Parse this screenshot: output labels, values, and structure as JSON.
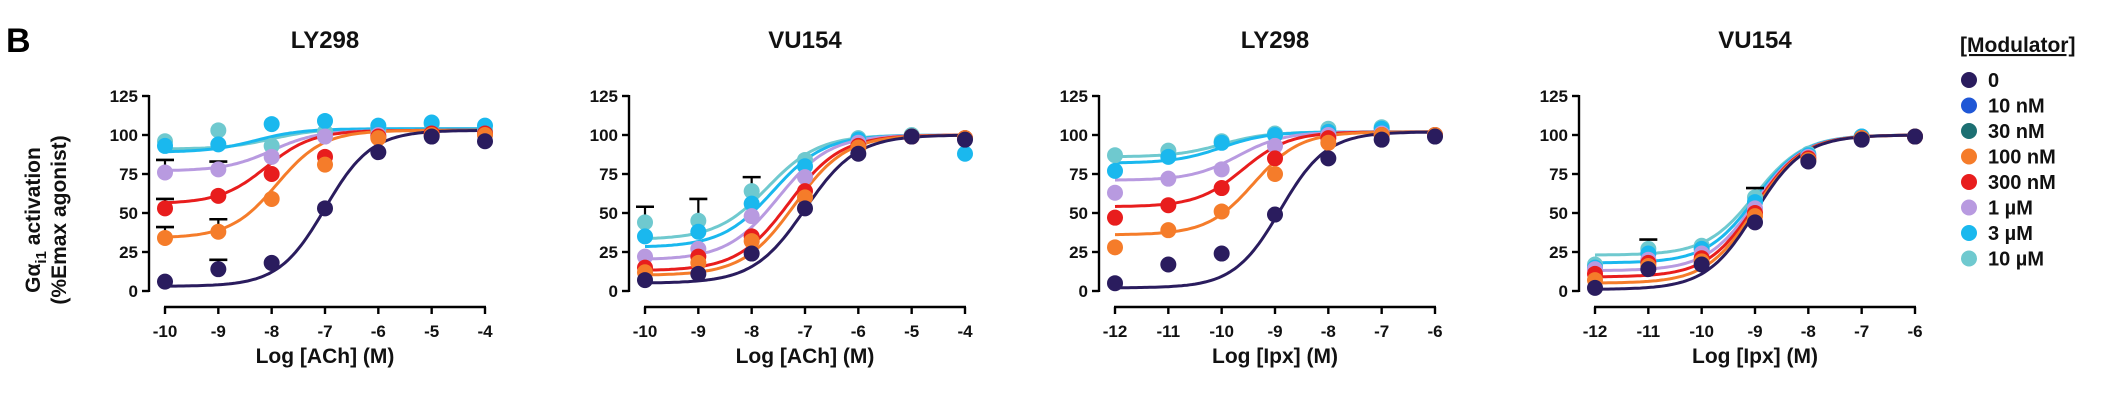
{
  "panel_letter": "B",
  "ylabel_line1": "Gα",
  "ylabel_sub": "i1",
  "ylabel_line1_rest": " activation",
  "ylabel_line2": "(%Emax agonist)",
  "legend": {
    "title": "[Modulator]",
    "entries": [
      {
        "name": "0",
        "color": "#2a1c5e"
      },
      {
        "name": "10 nM",
        "color": "#1f57d6"
      },
      {
        "name": "30 nM",
        "color": "#1c6f72"
      },
      {
        "name": "100 nM",
        "color": "#f57c2a"
      },
      {
        "name": "300 nM",
        "color": "#e81d1d"
      },
      {
        "name": "1 µM",
        "color": "#b89ae0"
      },
      {
        "name": "3 µM",
        "color": "#1ab8ee"
      },
      {
        "name": "10 µM",
        "color": "#6fc9cf"
      }
    ]
  },
  "chart_data": [
    {
      "type": "scatter",
      "title": "LY298",
      "xlabel": "Log [ACh] (M)",
      "xlim": [
        -10,
        -4
      ],
      "xticks": [
        -10,
        -9,
        -8,
        -7,
        -6,
        -5,
        -4
      ],
      "ylim": [
        0,
        125
      ],
      "yticks": [
        0,
        25,
        50,
        75,
        100,
        125
      ],
      "series": [
        {
          "name": "0",
          "x": [
            -10,
            -9,
            -8,
            -7,
            -6,
            -5,
            -4
          ],
          "y": [
            6,
            14,
            18,
            53,
            89,
            99,
            96
          ],
          "err": [
            0,
            6,
            0,
            0,
            0,
            0,
            0
          ],
          "fit": {
            "bottom": 3,
            "top": 103,
            "ec50": -7.0,
            "hill": 1.0
          }
        },
        {
          "name": "100 nM",
          "x": [
            -10,
            -9,
            -8,
            -7,
            -6,
            -5,
            -4
          ],
          "y": [
            34,
            38,
            59,
            81,
            98,
            100,
            100
          ],
          "err": [
            7,
            8,
            0,
            0,
            0,
            0,
            0
          ],
          "fit": {
            "bottom": 34,
            "top": 103,
            "ec50": -7.9,
            "hill": 1.0
          }
        },
        {
          "name": "300 nM",
          "x": [
            -10,
            -9,
            -8,
            -7,
            -6,
            -5,
            -4
          ],
          "y": [
            53,
            61,
            75,
            86,
            99,
            101,
            101
          ],
          "err": [
            6,
            0,
            0,
            0,
            0,
            0,
            0
          ],
          "fit": {
            "bottom": 56,
            "top": 103,
            "ec50": -8.1,
            "hill": 1.0
          }
        },
        {
          "name": "1 µM",
          "x": [
            -10,
            -9,
            -8,
            -7,
            -6,
            -5,
            -4
          ],
          "y": [
            76,
            78,
            86,
            99,
            100,
            100,
            100
          ],
          "err": [
            8,
            5,
            0,
            0,
            0,
            0,
            0
          ],
          "fit": {
            "bottom": 77,
            "top": 103,
            "ec50": -8.0,
            "hill": 1.0
          }
        },
        {
          "name": "3 µM",
          "x": [
            -10,
            -9,
            -8,
            -7,
            -6,
            -5,
            -4
          ],
          "y": [
            93,
            94,
            107,
            109,
            106,
            108,
            106
          ],
          "err": [
            0,
            0,
            0,
            0,
            0,
            0,
            0
          ],
          "fit": {
            "bottom": 89,
            "top": 104,
            "ec50": -8.3,
            "hill": 1.0
          }
        },
        {
          "name": "10 µM",
          "x": [
            -10,
            -9,
            -8,
            -7,
            -6,
            -5,
            -4
          ],
          "y": [
            96,
            103,
            93,
            102,
            104,
            107,
            103
          ],
          "err": [
            0,
            0,
            0,
            0,
            0,
            0,
            0
          ],
          "fit": {
            "bottom": 91,
            "top": 104,
            "ec50": -8.0,
            "hill": 1.0
          }
        }
      ]
    },
    {
      "type": "scatter",
      "title": "VU154",
      "xlabel": "Log [ACh] (M)",
      "xlim": [
        -10,
        -4
      ],
      "xticks": [
        -10,
        -9,
        -8,
        -7,
        -6,
        -5,
        -4
      ],
      "ylim": [
        0,
        125
      ],
      "yticks": [
        0,
        25,
        50,
        75,
        100,
        125
      ],
      "series": [
        {
          "name": "0",
          "x": [
            -10,
            -9,
            -8,
            -7,
            -6,
            -5,
            -4
          ],
          "y": [
            7,
            11,
            24,
            53,
            88,
            99,
            97
          ],
          "err": [
            0,
            0,
            0,
            0,
            0,
            0,
            0
          ],
          "fit": {
            "bottom": 5,
            "top": 100,
            "ec50": -7.0,
            "hill": 0.9
          }
        },
        {
          "name": "100 nM",
          "x": [
            -10,
            -9,
            -8,
            -7,
            -6,
            -5,
            -4
          ],
          "y": [
            12,
            18,
            32,
            60,
            92,
            99,
            98
          ],
          "err": [
            0,
            0,
            0,
            0,
            0,
            0,
            0
          ],
          "fit": {
            "bottom": 10,
            "top": 100,
            "ec50": -7.2,
            "hill": 0.9
          }
        },
        {
          "name": "300 nM",
          "x": [
            -10,
            -9,
            -8,
            -7,
            -6,
            -5,
            -4
          ],
          "y": [
            15,
            22,
            35,
            64,
            93,
            99,
            98
          ],
          "err": [
            0,
            0,
            0,
            0,
            0,
            0,
            0
          ],
          "fit": {
            "bottom": 13,
            "top": 100,
            "ec50": -7.3,
            "hill": 0.9
          }
        },
        {
          "name": "1 µM",
          "x": [
            -10,
            -9,
            -8,
            -7,
            -6,
            -5,
            -4
          ],
          "y": [
            22,
            27,
            48,
            73,
            95,
            99,
            98
          ],
          "err": [
            0,
            0,
            0,
            0,
            0,
            0,
            0
          ],
          "fit": {
            "bottom": 20,
            "top": 100,
            "ec50": -7.5,
            "hill": 0.9
          }
        },
        {
          "name": "3 µM",
          "x": [
            -10,
            -9,
            -8,
            -7,
            -6,
            -5,
            -4
          ],
          "y": [
            35,
            38,
            56,
            80,
            97,
            99,
            88
          ],
          "err": [
            0,
            0,
            0,
            0,
            0,
            0,
            0
          ],
          "fit": {
            "bottom": 28,
            "top": 100,
            "ec50": -7.6,
            "hill": 0.9
          }
        },
        {
          "name": "10 µM",
          "x": [
            -10,
            -9,
            -8,
            -7,
            -6,
            -5,
            -4
          ],
          "y": [
            44,
            45,
            64,
            84,
            98,
            100,
            98
          ],
          "err": [
            10,
            14,
            9,
            0,
            0,
            0,
            0
          ],
          "fit": {
            "bottom": 33,
            "top": 100,
            "ec50": -7.7,
            "hill": 0.9
          }
        }
      ]
    },
    {
      "type": "scatter",
      "title": "LY298",
      "xlabel": "Log [Ipx] (M)",
      "xlim": [
        -12,
        -6
      ],
      "xticks": [
        -12,
        -11,
        -10,
        -9,
        -8,
        -7,
        -6
      ],
      "ylim": [
        0,
        125
      ],
      "yticks": [
        0,
        25,
        50,
        75,
        100,
        125
      ],
      "series": [
        {
          "name": "0",
          "x": [
            -12,
            -11,
            -10,
            -9,
            -8,
            -7,
            -6
          ],
          "y": [
            5,
            17,
            24,
            49,
            85,
            97,
            99
          ],
          "err": [
            0,
            0,
            0,
            0,
            0,
            0,
            0
          ],
          "fit": {
            "bottom": 2,
            "top": 102,
            "ec50": -8.9,
            "hill": 1.0
          }
        },
        {
          "name": "100 nM",
          "x": [
            -12,
            -11,
            -10,
            -9,
            -8,
            -7,
            -6
          ],
          "y": [
            28,
            39,
            51,
            75,
            95,
            100,
            100
          ],
          "err": [
            0,
            0,
            0,
            0,
            0,
            0,
            0
          ],
          "fit": {
            "bottom": 36,
            "top": 102,
            "ec50": -9.4,
            "hill": 1.0
          }
        },
        {
          "name": "300 nM",
          "x": [
            -12,
            -11,
            -10,
            -9,
            -8,
            -7,
            -6
          ],
          "y": [
            47,
            55,
            66,
            85,
            98,
            100,
            100
          ],
          "err": [
            0,
            0,
            0,
            0,
            0,
            0,
            0
          ],
          "fit": {
            "bottom": 54,
            "top": 102,
            "ec50": -9.6,
            "hill": 1.0
          }
        },
        {
          "name": "1 µM",
          "x": [
            -12,
            -11,
            -10,
            -9,
            -8,
            -7,
            -6
          ],
          "y": [
            63,
            72,
            78,
            93,
            100,
            101,
            100
          ],
          "err": [
            0,
            0,
            0,
            0,
            0,
            0,
            0
          ],
          "fit": {
            "bottom": 71,
            "top": 102,
            "ec50": -9.7,
            "hill": 1.0
          }
        },
        {
          "name": "3 µM",
          "x": [
            -12,
            -11,
            -10,
            -9,
            -8,
            -7,
            -6
          ],
          "y": [
            77,
            86,
            95,
            100,
            102,
            104,
            100
          ],
          "err": [
            0,
            0,
            0,
            0,
            0,
            0,
            0
          ],
          "fit": {
            "bottom": 82,
            "top": 102,
            "ec50": -10.0,
            "hill": 1.0
          }
        },
        {
          "name": "10 µM",
          "x": [
            -12,
            -11,
            -10,
            -9,
            -8,
            -7,
            -6
          ],
          "y": [
            87,
            90,
            96,
            101,
            104,
            105,
            100
          ],
          "err": [
            0,
            0,
            0,
            0,
            0,
            0,
            0
          ],
          "fit": {
            "bottom": 86,
            "top": 102,
            "ec50": -10.0,
            "hill": 1.0
          }
        }
      ]
    },
    {
      "type": "scatter",
      "title": "VU154",
      "xlabel": "Log [Ipx] (M)",
      "xlim": [
        -12,
        -6
      ],
      "xticks": [
        -12,
        -11,
        -10,
        -9,
        -8,
        -7,
        -6
      ],
      "ylim": [
        0,
        125
      ],
      "yticks": [
        0,
        25,
        50,
        75,
        100,
        125
      ],
      "series": [
        {
          "name": "0",
          "x": [
            -12,
            -11,
            -10,
            -9,
            -8,
            -7,
            -6
          ],
          "y": [
            2,
            14,
            17,
            44,
            83,
            97,
            99
          ],
          "err": [
            0,
            0,
            0,
            0,
            0,
            0,
            0
          ],
          "fit": {
            "bottom": 1,
            "top": 100,
            "ec50": -9.0,
            "hill": 0.95
          }
        },
        {
          "name": "100 nM",
          "x": [
            -12,
            -11,
            -10,
            -9,
            -8,
            -7,
            -6
          ],
          "y": [
            7,
            16,
            19,
            48,
            84,
            98,
            99
          ],
          "err": [
            0,
            0,
            0,
            0,
            0,
            0,
            0
          ],
          "fit": {
            "bottom": 5,
            "top": 100,
            "ec50": -9.0,
            "hill": 0.95
          }
        },
        {
          "name": "300 nM",
          "x": [
            -12,
            -11,
            -10,
            -9,
            -8,
            -7,
            -6
          ],
          "y": [
            11,
            18,
            21,
            50,
            85,
            98,
            99
          ],
          "err": [
            0,
            0,
            0,
            0,
            0,
            0,
            0
          ],
          "fit": {
            "bottom": 9,
            "top": 100,
            "ec50": -9.0,
            "hill": 0.95
          }
        },
        {
          "name": "1 µM",
          "x": [
            -12,
            -11,
            -10,
            -9,
            -8,
            -7,
            -6
          ],
          "y": [
            14,
            20,
            24,
            53,
            86,
            98,
            99
          ],
          "err": [
            0,
            0,
            0,
            0,
            0,
            0,
            0
          ],
          "fit": {
            "bottom": 13,
            "top": 100,
            "ec50": -9.0,
            "hill": 0.95
          }
        },
        {
          "name": "3 µM",
          "x": [
            -12,
            -11,
            -10,
            -9,
            -8,
            -7,
            -6
          ],
          "y": [
            15,
            24,
            27,
            57,
            87,
            99,
            99
          ],
          "err": [
            0,
            0,
            0,
            0,
            0,
            0,
            0
          ],
          "fit": {
            "bottom": 18,
            "top": 100,
            "ec50": -9.0,
            "hill": 0.95
          }
        },
        {
          "name": "10 µM",
          "x": [
            -12,
            -11,
            -10,
            -9,
            -8,
            -7,
            -6
          ],
          "y": [
            17,
            27,
            29,
            60,
            88,
            99,
            99
          ],
          "err": [
            0,
            6,
            0,
            6,
            0,
            0,
            0
          ],
          "fit": {
            "bottom": 23,
            "top": 100,
            "ec50": -9.0,
            "hill": 0.95
          }
        }
      ]
    }
  ]
}
